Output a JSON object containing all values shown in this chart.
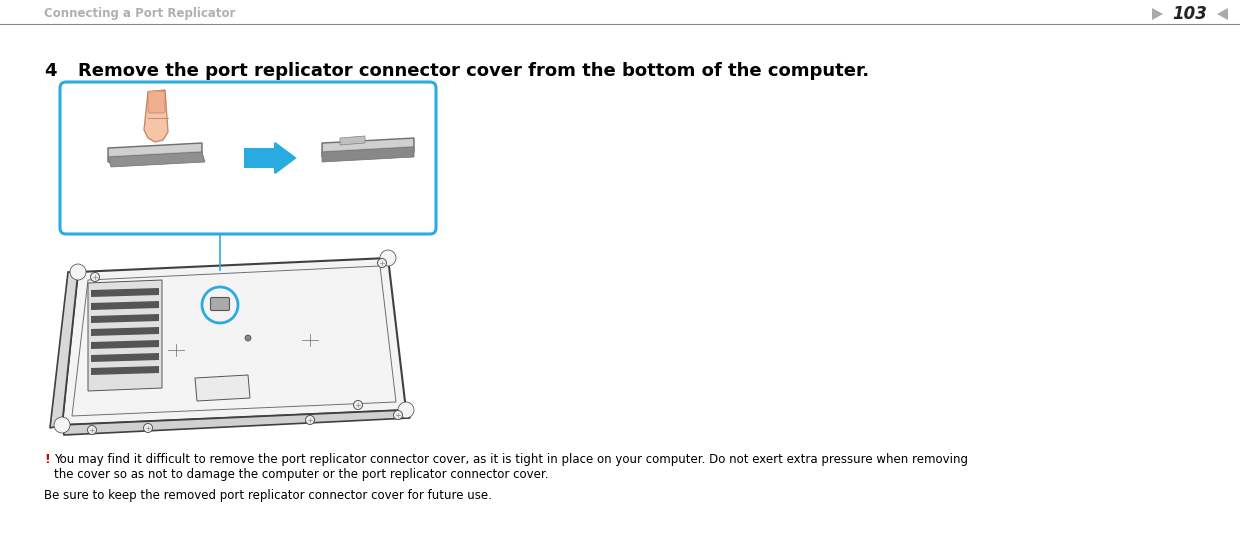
{
  "bg_color": "#ffffff",
  "header_text": "Connecting a Port Replicator",
  "header_color": "#b0b0b0",
  "header_font_size": 8.5,
  "page_number": "103",
  "page_num_color": "#222222",
  "page_num_font_size": 12,
  "step_number": "4",
  "step_font_size": 13,
  "step_text": "Remove the port replicator connector cover from the bottom of the computer.",
  "warning_exclaim": "!",
  "warning_exclaim_color": "#cc0000",
  "warning_exclaim_font_size": 9,
  "warning_line1": "You may find it difficult to remove the port replicator connector cover, as it is tight in place on your computer. Do not exert extra pressure when removing",
  "warning_line2": "the cover so as not to damage the computer or the port replicator connector cover.",
  "warning_font_size": 8.5,
  "note_text": "Be sure to keep the removed port replicator connector cover for future use.",
  "note_font_size": 8.5,
  "text_color": "#000000",
  "divider_color": "#888888",
  "box_border_color": "#29abe2",
  "arrow_fill_color": "#29abe2",
  "laptop_line_color": "#333333",
  "gray_arrow_color": "#aaaaaa"
}
